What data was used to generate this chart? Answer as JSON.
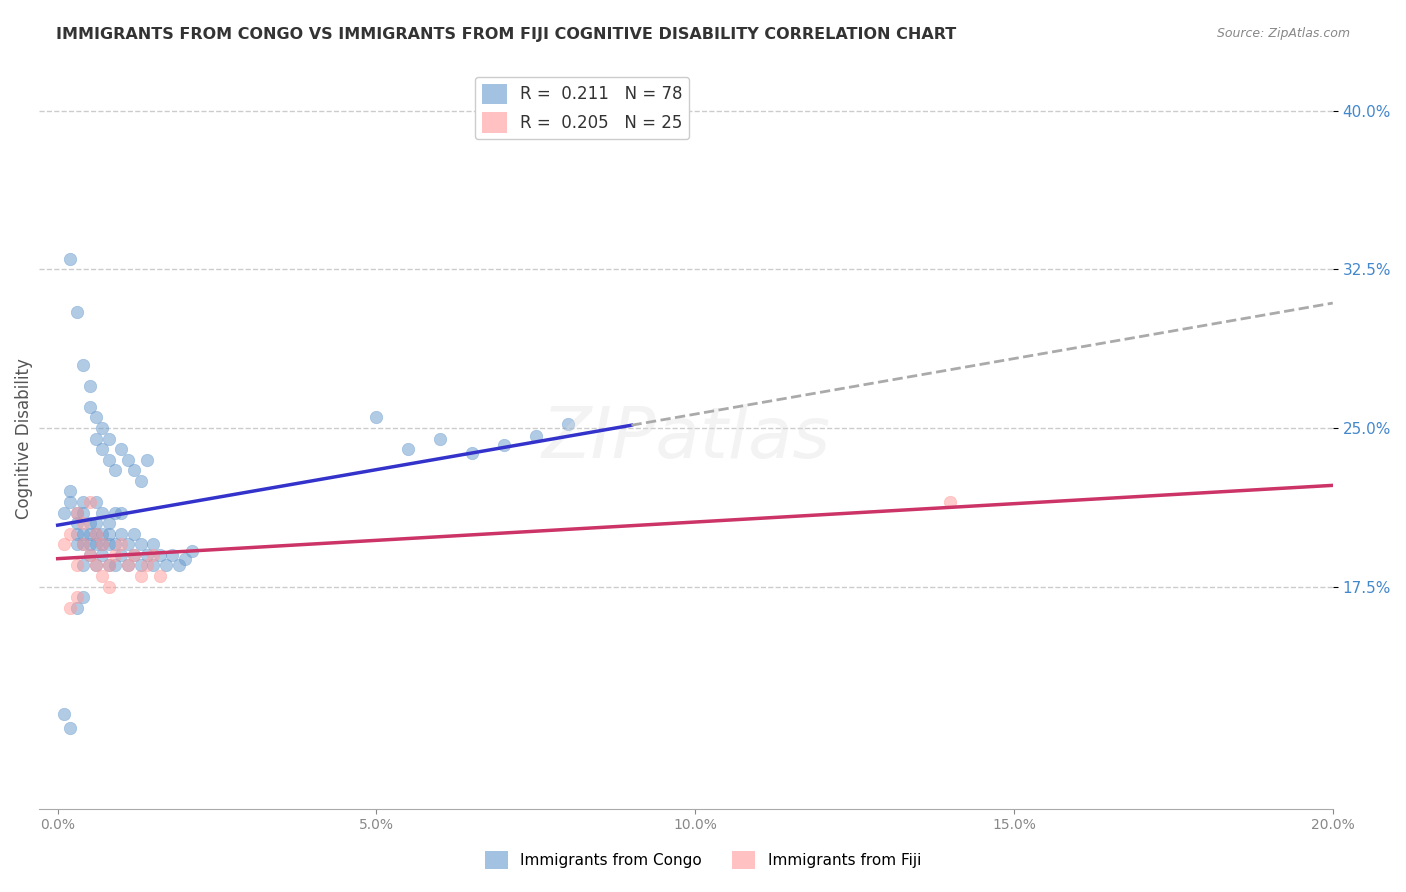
{
  "title": "IMMIGRANTS FROM CONGO VS IMMIGRANTS FROM FIJI COGNITIVE DISABILITY CORRELATION CHART",
  "source": "Source: ZipAtlas.com",
  "xlabel": "",
  "ylabel": "Cognitive Disability",
  "legend_label_1": "Immigrants from Congo",
  "legend_label_2": "Immigrants from Fiji",
  "R1": 0.211,
  "N1": 78,
  "R2": 0.205,
  "N2": 25,
  "xlim": [
    0.0,
    0.2
  ],
  "ylim": [
    0.07,
    0.42
  ],
  "xticks": [
    0.0,
    0.05,
    0.1,
    0.15,
    0.2
  ],
  "yticks": [
    0.175,
    0.25,
    0.325,
    0.4
  ],
  "color1": "#6699CC",
  "color2": "#FF9999",
  "line_color1": "#3333CC",
  "line_color2": "#CC3366",
  "scatter_alpha": 0.5,
  "scatter_size": 80,
  "congo_x": [
    0.001,
    0.002,
    0.002,
    0.003,
    0.003,
    0.003,
    0.003,
    0.004,
    0.004,
    0.004,
    0.004,
    0.004,
    0.005,
    0.005,
    0.005,
    0.005,
    0.006,
    0.006,
    0.006,
    0.006,
    0.006,
    0.007,
    0.007,
    0.007,
    0.007,
    0.008,
    0.008,
    0.008,
    0.008,
    0.009,
    0.009,
    0.009,
    0.01,
    0.01,
    0.01,
    0.011,
    0.011,
    0.012,
    0.012,
    0.013,
    0.013,
    0.014,
    0.015,
    0.015,
    0.016,
    0.017,
    0.018,
    0.019,
    0.02,
    0.021,
    0.002,
    0.003,
    0.004,
    0.005,
    0.005,
    0.006,
    0.006,
    0.007,
    0.007,
    0.008,
    0.008,
    0.009,
    0.01,
    0.011,
    0.012,
    0.013,
    0.014,
    0.05,
    0.055,
    0.06,
    0.065,
    0.07,
    0.075,
    0.08,
    0.001,
    0.002,
    0.003,
    0.004
  ],
  "congo_y": [
    0.21,
    0.215,
    0.22,
    0.195,
    0.2,
    0.205,
    0.21,
    0.185,
    0.195,
    0.2,
    0.215,
    0.21,
    0.19,
    0.195,
    0.2,
    0.205,
    0.185,
    0.195,
    0.2,
    0.205,
    0.215,
    0.19,
    0.195,
    0.2,
    0.21,
    0.185,
    0.195,
    0.2,
    0.205,
    0.185,
    0.195,
    0.21,
    0.19,
    0.2,
    0.21,
    0.185,
    0.195,
    0.19,
    0.2,
    0.185,
    0.195,
    0.19,
    0.185,
    0.195,
    0.19,
    0.185,
    0.19,
    0.185,
    0.188,
    0.192,
    0.33,
    0.305,
    0.28,
    0.26,
    0.27,
    0.245,
    0.255,
    0.24,
    0.25,
    0.235,
    0.245,
    0.23,
    0.24,
    0.235,
    0.23,
    0.225,
    0.235,
    0.255,
    0.24,
    0.245,
    0.238,
    0.242,
    0.246,
    0.252,
    0.115,
    0.108,
    0.165,
    0.17
  ],
  "fiji_x": [
    0.001,
    0.002,
    0.003,
    0.004,
    0.005,
    0.006,
    0.007,
    0.008,
    0.009,
    0.01,
    0.011,
    0.012,
    0.013,
    0.014,
    0.015,
    0.016,
    0.003,
    0.004,
    0.005,
    0.006,
    0.007,
    0.008,
    0.003,
    0.002,
    0.14
  ],
  "fiji_y": [
    0.195,
    0.2,
    0.185,
    0.195,
    0.19,
    0.185,
    0.18,
    0.185,
    0.19,
    0.195,
    0.185,
    0.19,
    0.18,
    0.185,
    0.19,
    0.18,
    0.21,
    0.205,
    0.215,
    0.2,
    0.195,
    0.175,
    0.17,
    0.165,
    0.215
  ]
}
